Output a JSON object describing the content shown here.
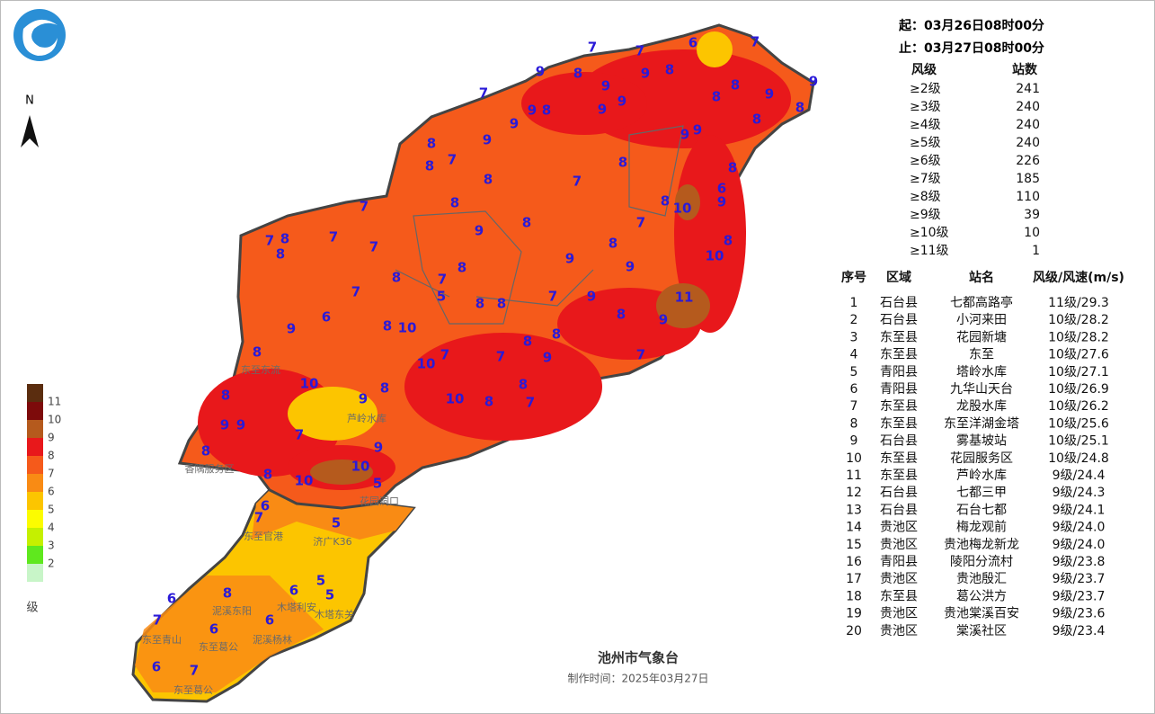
{
  "header": {
    "start": "起：03月26日08时00分",
    "end": "止：03月27日08时00分"
  },
  "compass": "N",
  "summary": {
    "headers": [
      "风级",
      "站数"
    ],
    "rows": [
      [
        "≥2级",
        "241"
      ],
      [
        "≥3级",
        "240"
      ],
      [
        "≥4级",
        "240"
      ],
      [
        "≥5级",
        "240"
      ],
      [
        "≥6级",
        "226"
      ],
      [
        "≥7级",
        "185"
      ],
      [
        "≥8级",
        "110"
      ],
      [
        "≥9级",
        "39"
      ],
      [
        "≥10级",
        "10"
      ],
      [
        "≥11级",
        "1"
      ]
    ]
  },
  "stations": {
    "headers": [
      "序号",
      "区域",
      "站名",
      "风级/风速(m/s)"
    ],
    "rows": [
      [
        "1",
        "石台县",
        "七都高路亭",
        "11级/29.3"
      ],
      [
        "2",
        "石台县",
        "小河来田",
        "10级/28.2"
      ],
      [
        "3",
        "东至县",
        "花园新塘",
        "10级/28.2"
      ],
      [
        "4",
        "东至县",
        "东至",
        "10级/27.6"
      ],
      [
        "5",
        "青阳县",
        "塔岭水库",
        "10级/27.1"
      ],
      [
        "6",
        "青阳县",
        "九华山天台",
        "10级/26.9"
      ],
      [
        "7",
        "东至县",
        "龙股水库",
        "10级/26.2"
      ],
      [
        "8",
        "东至县",
        "东至洋湖金塔",
        "10级/25.6"
      ],
      [
        "9",
        "石台县",
        "雾基坡站",
        "10级/25.1"
      ],
      [
        "10",
        "东至县",
        "花园服务区",
        "10级/24.8"
      ],
      [
        "11",
        "东至县",
        "芦岭水库",
        "9级/24.4"
      ],
      [
        "12",
        "石台县",
        "七都三甲",
        "9级/24.3"
      ],
      [
        "13",
        "石台县",
        "石台七都",
        "9级/24.1"
      ],
      [
        "14",
        "贵池区",
        "梅龙观前",
        "9级/24.0"
      ],
      [
        "15",
        "贵池区",
        "贵池梅龙新龙",
        "9级/24.0"
      ],
      [
        "16",
        "青阳县",
        "陵阳分流村",
        "9级/23.8"
      ],
      [
        "17",
        "贵池区",
        "贵池殷汇",
        "9级/23.7"
      ],
      [
        "18",
        "东至县",
        "葛公洪方",
        "9级/23.7"
      ],
      [
        "19",
        "贵池区",
        "贵池棠溪百安",
        "9级/23.6"
      ],
      [
        "20",
        "贵池区",
        "棠溪社区",
        "9级/23.4"
      ]
    ]
  },
  "legend": {
    "levels": [
      "11",
      "10",
      "9",
      "8",
      "7",
      "6",
      "5",
      "4",
      "3",
      "2"
    ],
    "unit": "级"
  },
  "map": {
    "wind_levels": [
      "7",
      "7",
      "6",
      "7",
      "9",
      "8",
      "9",
      "8",
      "9",
      "7",
      "9",
      "9",
      "8",
      "8",
      "9",
      "8",
      "9",
      "9",
      "8",
      "9",
      "8",
      "9",
      "9",
      "8",
      "9",
      "8",
      "7",
      "8",
      "8",
      "8",
      "7",
      "8",
      "6",
      "8",
      "10",
      "9",
      "7",
      "7",
      "8",
      "9",
      "8",
      "7",
      "8",
      "7",
      "7",
      "8",
      "8",
      "9",
      "10",
      "8",
      "7",
      "8",
      "9",
      "7",
      "5",
      "8",
      "8",
      "7",
      "9",
      "11",
      "9",
      "6",
      "8",
      "10",
      "8",
      "9",
      "8",
      "7",
      "7",
      "8",
      "8",
      "9",
      "7",
      "10",
      "10",
      "8",
      "9",
      "8",
      "10",
      "8",
      "8",
      "7",
      "9",
      "9",
      "7",
      "9",
      "8",
      "10",
      "8",
      "10",
      "5",
      "6",
      "7",
      "5",
      "5",
      "5",
      "6",
      "8",
      "6",
      "7",
      "6",
      "6",
      "6",
      "7"
    ],
    "places": [
      "东至东流",
      "芦岭水库",
      "花园洞口",
      "东至官港",
      "济广K36",
      "泥溪东阳",
      "木塔利安",
      "东至葛公",
      "泥溪杨林",
      "木塔东关",
      "东至青山",
      "香隅服务区",
      "东至葛公"
    ]
  },
  "footer": {
    "org": "池州市气象台",
    "made": "制作时间：2025年03月27日"
  }
}
